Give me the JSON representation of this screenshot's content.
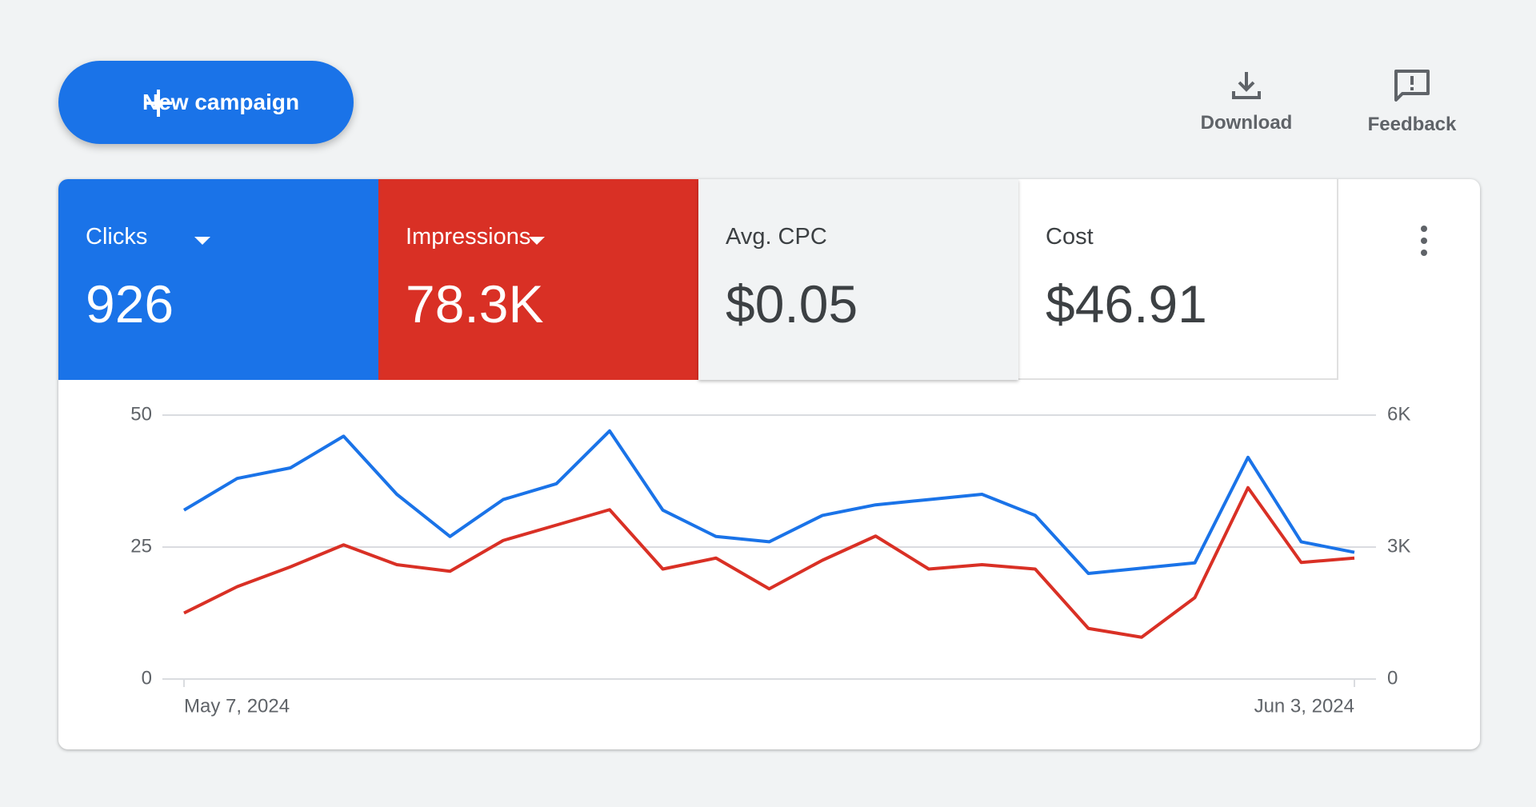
{
  "header": {
    "new_campaign": "New campaign",
    "download": "Download",
    "feedback": "Feedback"
  },
  "metrics": [
    {
      "label": "Clicks",
      "value": "926"
    },
    {
      "label": "Impressions",
      "value": "78.3K"
    },
    {
      "label": "Avg. CPC",
      "value": "$0.05"
    },
    {
      "label": "Cost",
      "value": "$46.91"
    }
  ],
  "chart_data": {
    "type": "line",
    "categories": [
      "May 7, 2024",
      null,
      null,
      null,
      null,
      null,
      null,
      null,
      null,
      null,
      null,
      null,
      null,
      null,
      null,
      null,
      null,
      null,
      null,
      null,
      null,
      null,
      "Jun 3, 2024"
    ],
    "series": [
      {
        "color": "#1a73e8",
        "values": [
          32,
          38,
          40,
          46,
          35,
          27,
          34,
          37,
          47,
          32,
          27,
          26,
          31,
          33,
          34,
          35,
          31,
          20,
          21,
          22,
          42,
          26,
          24
        ]
      },
      {
        "color": "#d93025",
        "axis": "y2",
        "values": [
          1500,
          2100,
          2550,
          3050,
          2600,
          2450,
          3150,
          3500,
          3850,
          2500,
          2750,
          2050,
          2700,
          3250,
          2500,
          2600,
          2500,
          1150,
          950,
          1850,
          4350,
          2650,
          2750
        ]
      }
    ],
    "ylim": [
      0,
      50
    ],
    "yticks": [
      0,
      25,
      50
    ],
    "y2lim": [
      0,
      6000
    ],
    "y2ticks": [
      0,
      {
        "value": 3000,
        "label": "3K"
      },
      {
        "value": 6000,
        "label": "6K"
      }
    ],
    "grid": true
  }
}
